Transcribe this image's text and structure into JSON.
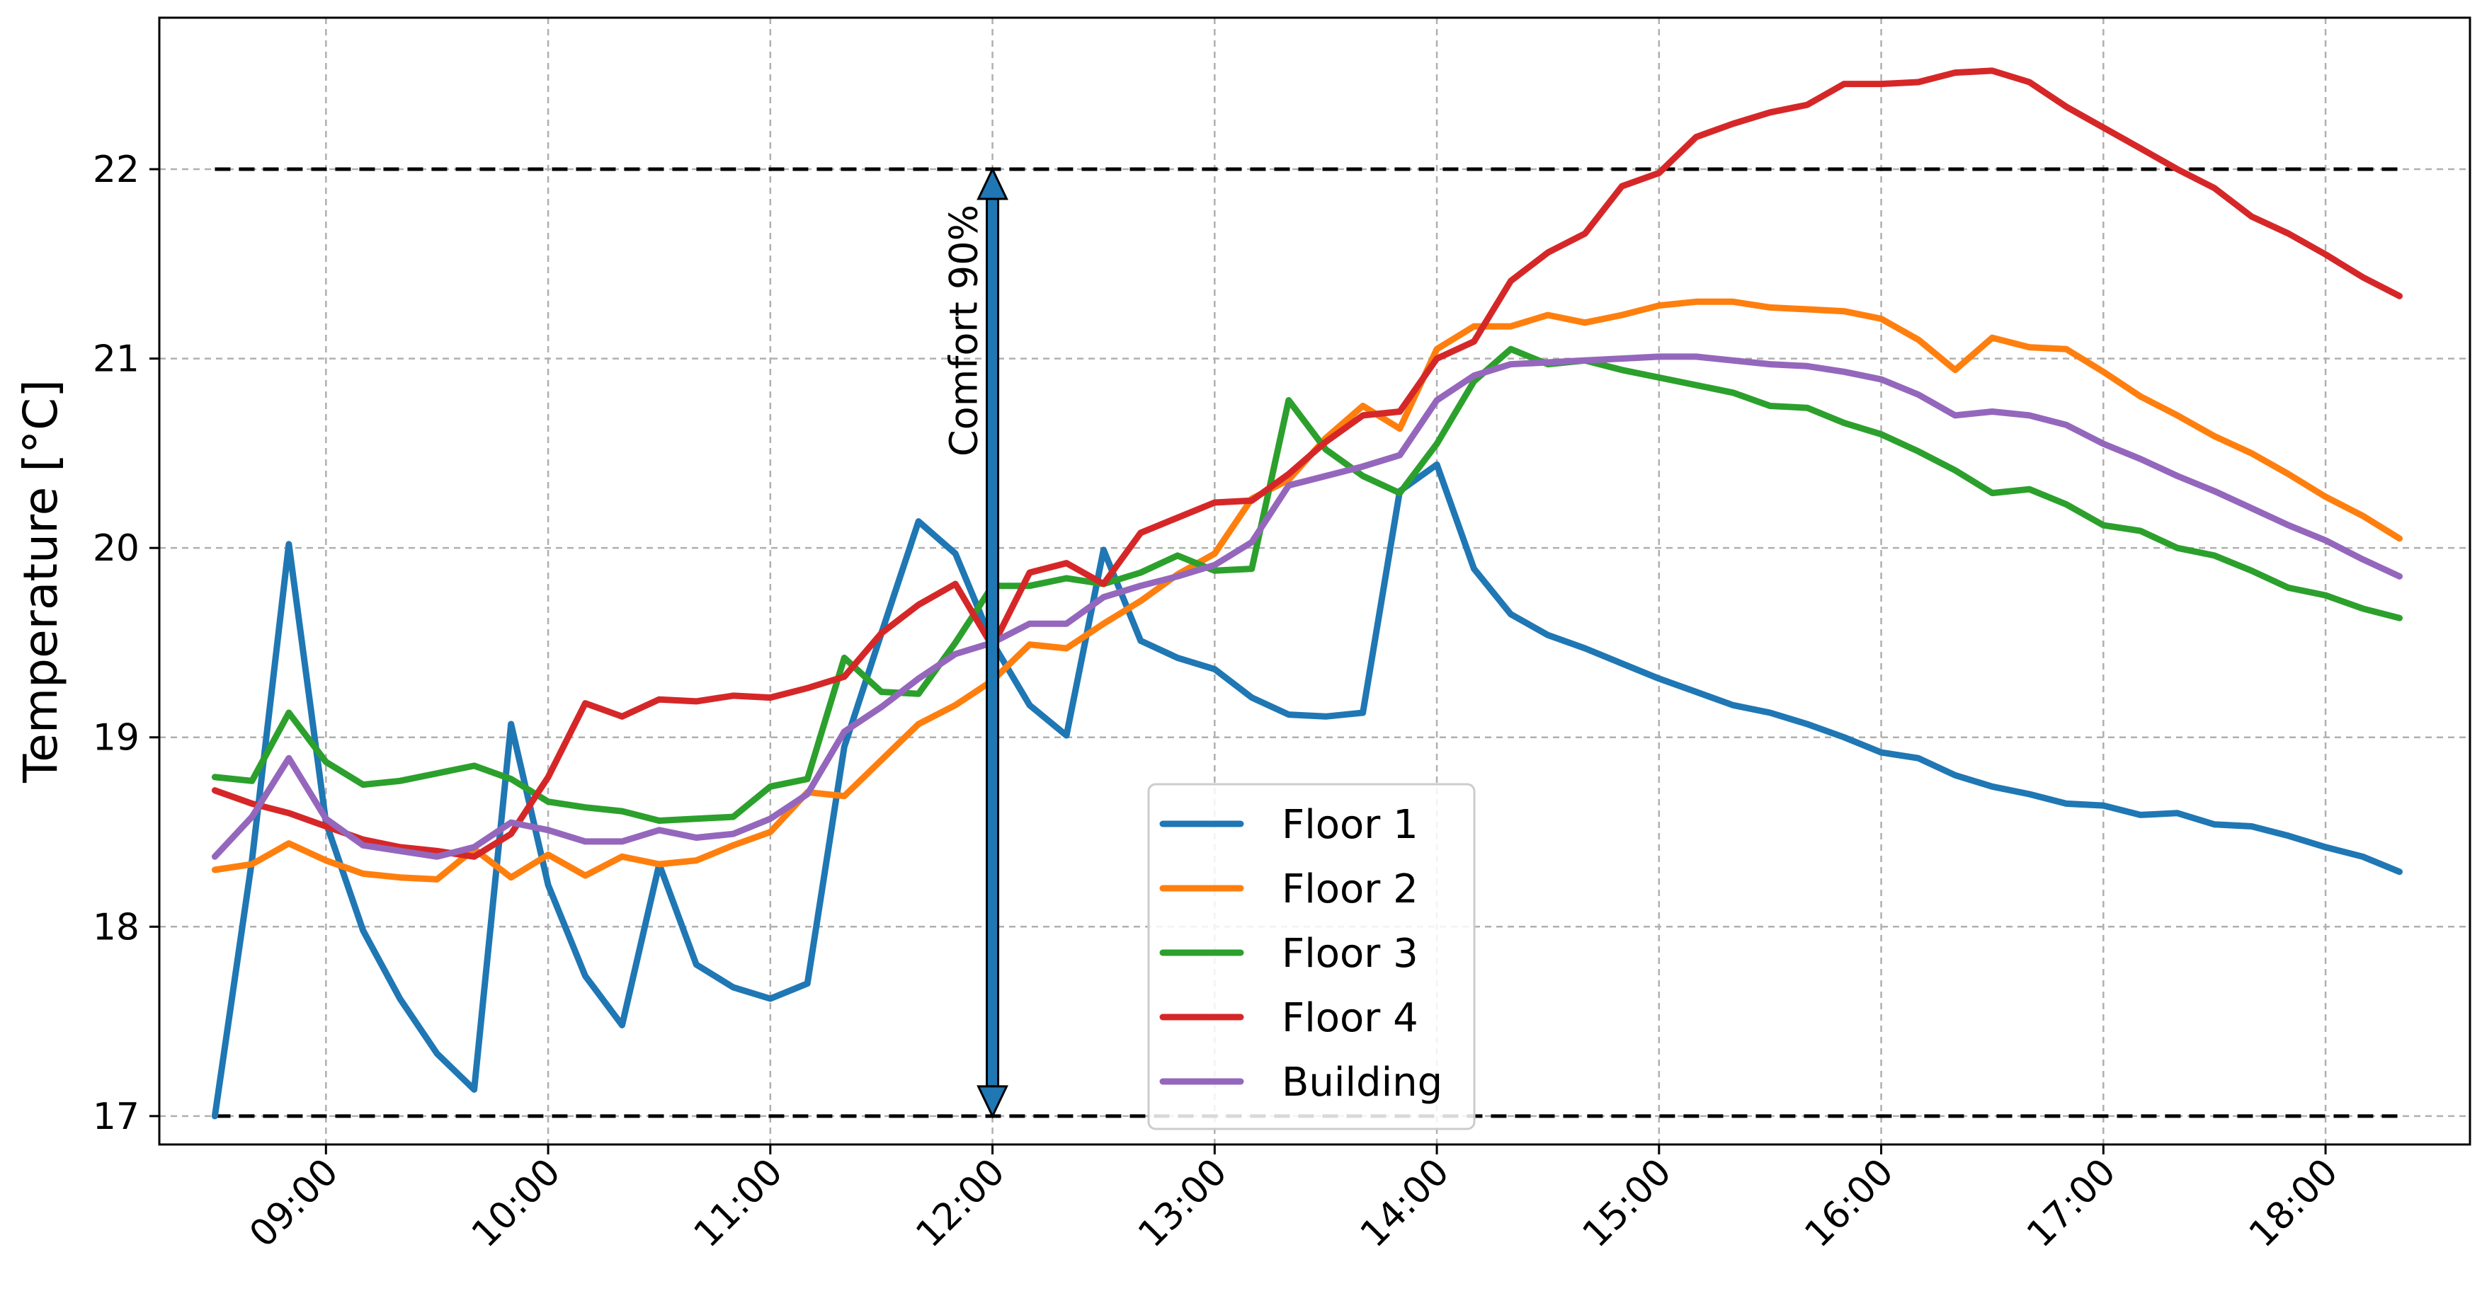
{
  "chart_data": {
    "type": "line",
    "title": "",
    "xlabel": "",
    "ylabel": "Temperature [°C]",
    "x_unit": "hours",
    "xlim": [
      8.25,
      18.65
    ],
    "ylim": [
      16.85,
      22.8
    ],
    "x_ticks": [
      9,
      10,
      11,
      12,
      13,
      14,
      15,
      16,
      17,
      18
    ],
    "x_tick_labels": [
      "09:00",
      "10:00",
      "11:00",
      "12:00",
      "13:00",
      "14:00",
      "15:00",
      "16:00",
      "17:00",
      "18:00"
    ],
    "y_ticks": [
      17,
      18,
      19,
      20,
      21,
      22
    ],
    "y_tick_labels": [
      "17",
      "18",
      "19",
      "20",
      "21",
      "22"
    ],
    "grid": true,
    "legend_position": "bottom-center",
    "x": [
      8.5,
      8.667,
      8.833,
      9.0,
      9.167,
      9.333,
      9.5,
      9.667,
      9.833,
      10.0,
      10.167,
      10.333,
      10.5,
      10.667,
      10.833,
      11.0,
      11.167,
      11.333,
      11.5,
      11.667,
      11.833,
      12.0,
      12.167,
      12.333,
      12.5,
      12.667,
      12.833,
      13.0,
      13.167,
      13.333,
      13.5,
      13.667,
      13.833,
      14.0,
      14.167,
      14.333,
      14.5,
      14.667,
      14.833,
      15.0,
      15.167,
      15.333,
      15.5,
      15.667,
      15.833,
      16.0,
      16.167,
      16.333,
      16.5,
      16.667,
      16.833,
      17.0,
      17.167,
      17.333,
      17.5,
      17.667,
      17.833,
      18.0,
      18.167,
      18.333
    ],
    "series": [
      {
        "name": "Floor 1",
        "color": "#1f77b4",
        "values": [
          17.0,
          18.35,
          20.02,
          18.55,
          17.98,
          17.62,
          17.33,
          17.14,
          19.07,
          18.22,
          17.74,
          17.48,
          18.33,
          17.8,
          17.68,
          17.62,
          17.7,
          18.95,
          19.55,
          20.14,
          19.97,
          19.5,
          19.17,
          19.01,
          19.99,
          19.51,
          19.42,
          19.36,
          19.21,
          19.12,
          19.11,
          19.13,
          20.3,
          20.44,
          19.89,
          19.65,
          19.54,
          19.47,
          19.39,
          19.31,
          19.24,
          19.17,
          19.13,
          19.07,
          19.0,
          18.92,
          18.89,
          18.8,
          18.74,
          18.7,
          18.65,
          18.64,
          18.59,
          18.6,
          18.54,
          18.53,
          18.48,
          18.42,
          18.37,
          18.29
        ]
      },
      {
        "name": "Floor 2",
        "color": "#ff7f0e",
        "values": [
          18.3,
          18.33,
          18.44,
          18.35,
          18.28,
          18.26,
          18.25,
          18.41,
          18.26,
          18.38,
          18.27,
          18.37,
          18.33,
          18.35,
          18.43,
          18.5,
          18.71,
          18.69,
          18.88,
          19.07,
          19.17,
          19.3,
          19.49,
          19.47,
          19.6,
          19.72,
          19.86,
          19.97,
          20.26,
          20.36,
          20.58,
          20.75,
          20.63,
          21.05,
          21.17,
          21.17,
          21.23,
          21.19,
          21.23,
          21.28,
          21.3,
          21.3,
          21.27,
          21.26,
          21.25,
          21.21,
          21.1,
          20.94,
          21.11,
          21.06,
          21.05,
          20.93,
          20.8,
          20.7,
          20.59,
          20.5,
          20.39,
          20.27,
          20.17,
          20.05
        ]
      },
      {
        "name": "Floor 3",
        "color": "#2ca02c",
        "values": [
          18.79,
          18.77,
          19.13,
          18.87,
          18.75,
          18.77,
          18.81,
          18.85,
          18.78,
          18.66,
          18.63,
          18.61,
          18.56,
          18.57,
          18.58,
          18.74,
          18.78,
          19.42,
          19.24,
          19.23,
          19.5,
          19.8,
          19.8,
          19.84,
          19.81,
          19.87,
          19.96,
          19.88,
          19.89,
          20.78,
          20.52,
          20.38,
          20.29,
          20.55,
          20.88,
          21.05,
          20.97,
          20.99,
          20.94,
          20.9,
          20.86,
          20.82,
          20.75,
          20.74,
          20.66,
          20.6,
          20.51,
          20.41,
          20.29,
          20.31,
          20.23,
          20.12,
          20.09,
          20.0,
          19.96,
          19.88,
          19.79,
          19.75,
          19.68,
          19.63
        ]
      },
      {
        "name": "Floor 4",
        "color": "#d62728",
        "values": [
          18.72,
          18.65,
          18.6,
          18.53,
          18.46,
          18.42,
          18.4,
          18.37,
          18.49,
          18.79,
          19.18,
          19.11,
          19.2,
          19.19,
          19.22,
          19.21,
          19.26,
          19.32,
          19.55,
          19.7,
          19.81,
          19.48,
          19.87,
          19.92,
          19.81,
          20.08,
          20.16,
          20.24,
          20.25,
          20.39,
          20.56,
          20.7,
          20.72,
          21.0,
          21.09,
          21.41,
          21.56,
          21.66,
          21.91,
          21.98,
          22.17,
          22.24,
          22.3,
          22.34,
          22.45,
          22.45,
          22.46,
          22.51,
          22.52,
          22.46,
          22.33,
          22.22,
          22.11,
          22.0,
          21.9,
          21.75,
          21.66,
          21.55,
          21.43,
          21.33
        ]
      },
      {
        "name": "Building",
        "color": "#9467bd",
        "values": [
          18.37,
          18.58,
          18.89,
          18.57,
          18.43,
          18.4,
          18.37,
          18.42,
          18.55,
          18.51,
          18.45,
          18.45,
          18.51,
          18.47,
          18.49,
          18.57,
          18.7,
          19.03,
          19.16,
          19.31,
          19.44,
          19.5,
          19.6,
          19.6,
          19.74,
          19.8,
          19.85,
          19.91,
          20.03,
          20.33,
          20.38,
          20.43,
          20.49,
          20.78,
          20.91,
          20.97,
          20.98,
          20.99,
          21.0,
          21.01,
          21.01,
          20.99,
          20.97,
          20.96,
          20.93,
          20.89,
          20.81,
          20.7,
          20.72,
          20.7,
          20.65,
          20.55,
          20.47,
          20.38,
          20.3,
          20.21,
          20.12,
          20.04,
          19.94,
          19.85
        ]
      }
    ],
    "comfort_band": {
      "lower": 17,
      "upper": 22,
      "x_start": 8.5,
      "x_end": 18.333
    },
    "annotations": [
      {
        "text": "Comfort 90%",
        "x": 12.0,
        "y_from": 17,
        "y_to": 22,
        "color": "#1f77b4"
      }
    ]
  }
}
